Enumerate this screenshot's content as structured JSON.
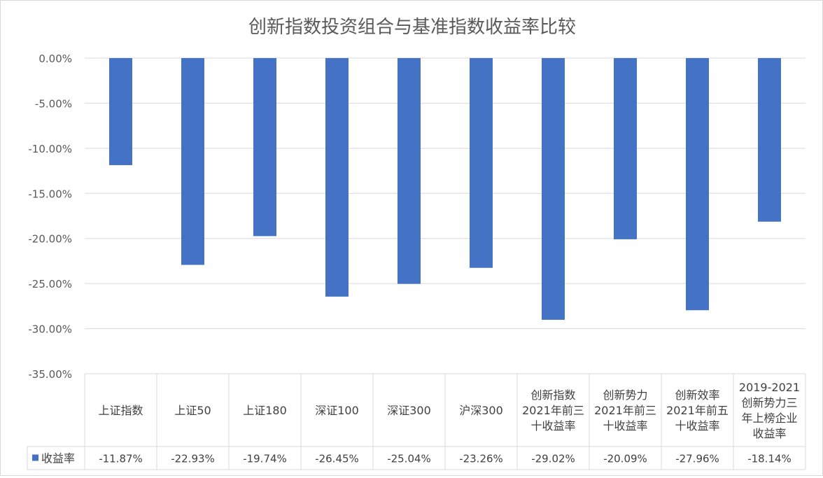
{
  "chart_data": {
    "type": "bar",
    "title": "创新指数投资组合与基准指数收益率比较",
    "categories": [
      [
        "上证指数"
      ],
      [
        "上证50"
      ],
      [
        "上证180"
      ],
      [
        "深证100"
      ],
      [
        "深证300"
      ],
      [
        "沪深300"
      ],
      [
        "创新指数",
        "2021年前三",
        "十收益率"
      ],
      [
        "创新势力",
        "2021年前三",
        "十收益率"
      ],
      [
        "创新效率",
        "2021年前五",
        "十收益率"
      ],
      [
        "2019-2021",
        "创新势力三",
        "年上榜企业",
        "收益率"
      ]
    ],
    "series": [
      {
        "name": "收益率",
        "color": "#4472C4",
        "values": [
          -11.87,
          -22.93,
          -19.74,
          -26.45,
          -25.04,
          -23.26,
          -29.02,
          -20.09,
          -27.96,
          -18.14
        ],
        "value_labels": [
          "-11.87%",
          "-22.93%",
          "-19.74%",
          "-26.45%",
          "-25.04%",
          "-23.26%",
          "-29.02%",
          "-20.09%",
          "-27.96%",
          "-18.14%"
        ]
      }
    ],
    "y_ticks": [
      0,
      -5,
      -10,
      -15,
      -20,
      -25,
      -30,
      -35
    ],
    "y_tick_labels": [
      "0.00%",
      "-5.00%",
      "-10.00%",
      "-15.00%",
      "-20.00%",
      "-25.00%",
      "-30.00%",
      "-35.00%"
    ],
    "ylim": [
      -35,
      0
    ],
    "grid": true,
    "data_table": true,
    "legend_placement": "data-table-left"
  }
}
